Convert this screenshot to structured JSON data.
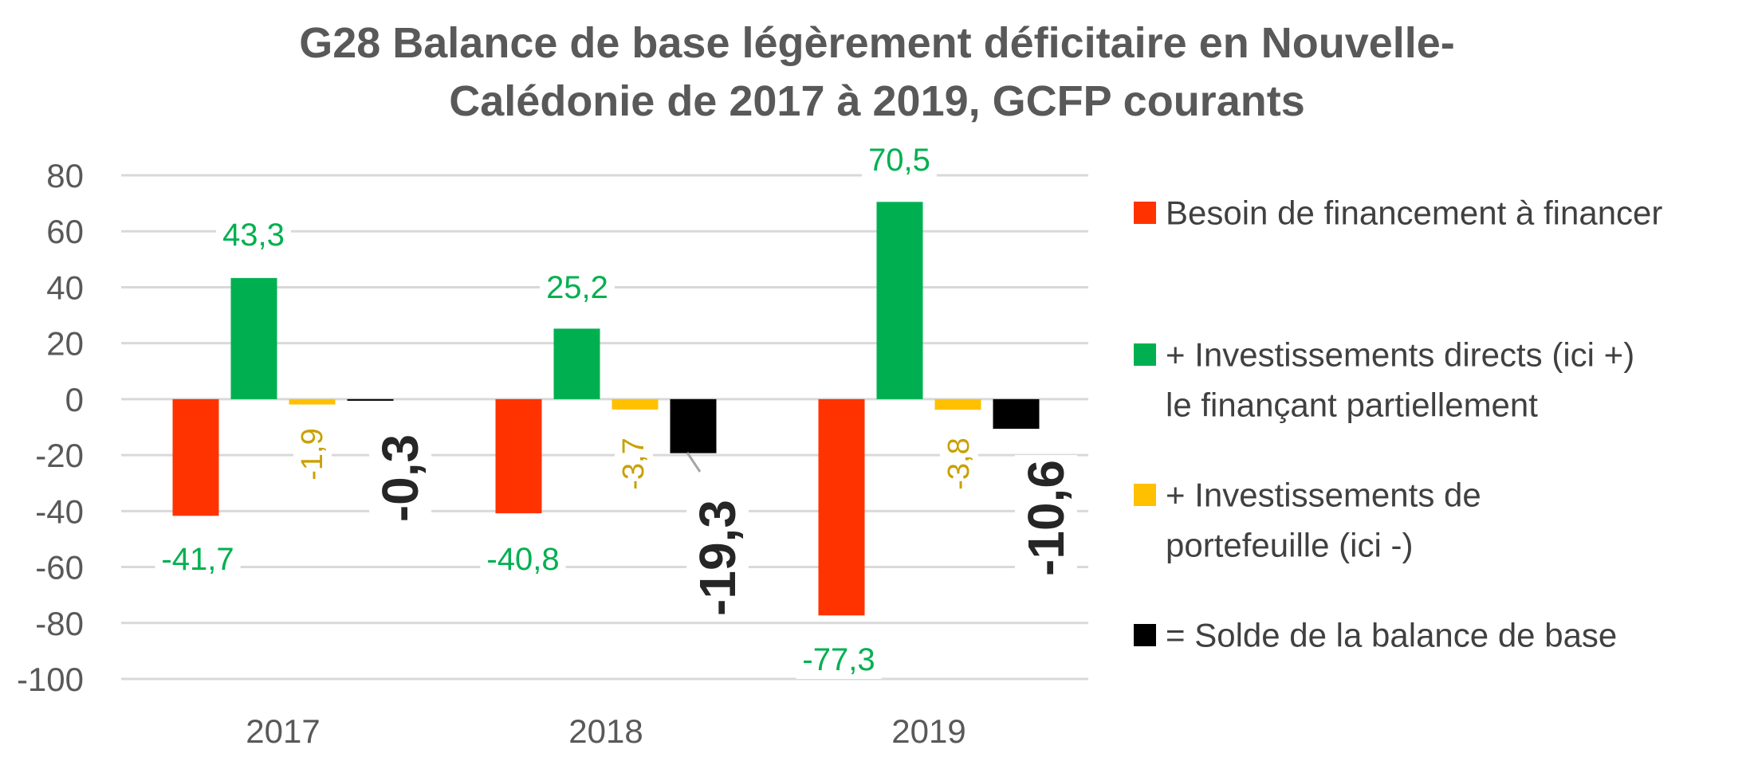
{
  "chart_data": {
    "type": "bar",
    "title_lines": [
      "G28  Balance de base légèrement déficitaire en Nouvelle-",
      "Calédonie de 2017 à 2019, GCFP courants"
    ],
    "categories": [
      "2017",
      "2018",
      "2019"
    ],
    "ylim": [
      -100,
      80
    ],
    "yticks": [
      "80",
      "60",
      "40",
      "20",
      "0",
      "-20",
      "-40",
      "-60",
      "-80",
      "-100"
    ],
    "ytick_values": [
      80,
      60,
      40,
      20,
      0,
      -20,
      -40,
      -60,
      -80,
      -100
    ],
    "grid": true,
    "legend_position": "right",
    "series": [
      {
        "name": "Besoin de financement à financer",
        "legend_lines": [
          "Besoin de financement à financer"
        ],
        "color": "#ff3300",
        "values": [
          -41.7,
          -40.8,
          -77.3
        ],
        "labels": [
          "-41,7",
          "-40,8",
          "-77,3"
        ],
        "label_color": "#00b050"
      },
      {
        "name": " + Investissements directs (ici +) le finançant partiellement",
        "legend_lines": [
          " + Investissements directs (ici +)",
          "le finançant partiellement"
        ],
        "color": "#00b050",
        "values": [
          43.3,
          25.2,
          70.5
        ],
        "labels": [
          "43,3",
          "25,2",
          "70,5"
        ],
        "label_color": "#00b050"
      },
      {
        "name": " + Investissements de portefeuille (ici -)",
        "legend_lines": [
          " + Investissements de",
          "portefeuille (ici -)"
        ],
        "color": "#ffc000",
        "values": [
          -1.9,
          -3.7,
          -3.8
        ],
        "labels": [
          "-1,9",
          "-3,7",
          "-3,8"
        ],
        "label_color": "#c9a000"
      },
      {
        "name": " = Solde de la balance de base",
        "legend_lines": [
          " = Solde de la balance de base"
        ],
        "color": "#000000",
        "values": [
          -0.3,
          -19.3,
          -10.6
        ],
        "labels": [
          "-0,3",
          "-19,3",
          "-10,6"
        ],
        "label_color": "#262626"
      }
    ]
  }
}
